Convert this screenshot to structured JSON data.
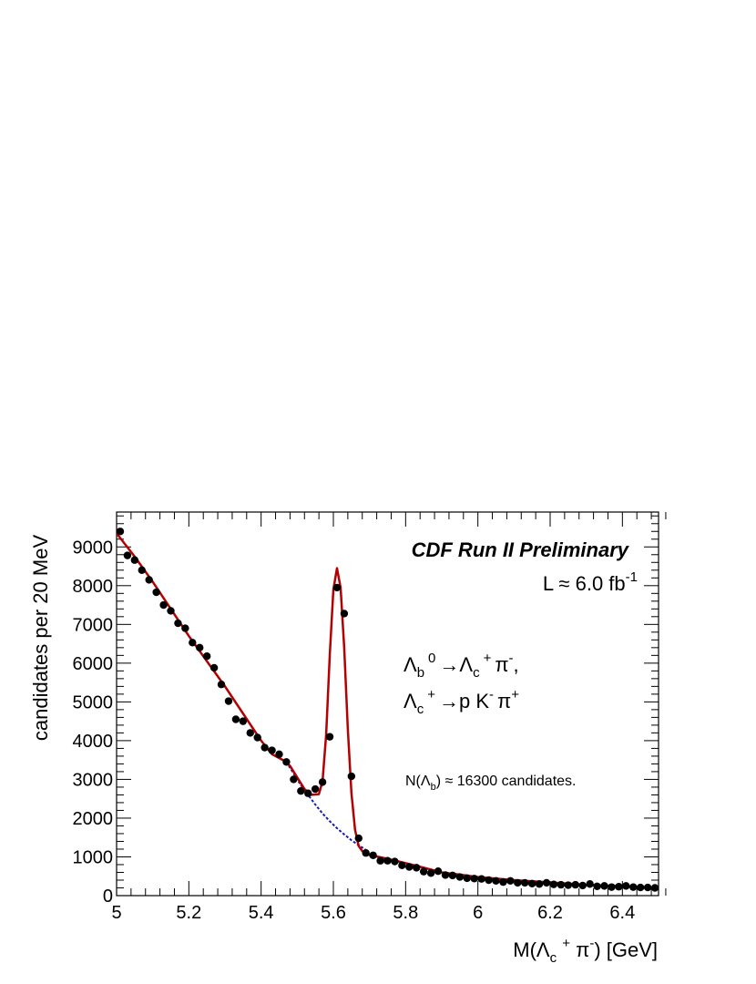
{
  "chart_data": {
    "type": "scatter",
    "xlim": [
      5.0,
      6.5
    ],
    "ylim": [
      0,
      9900
    ],
    "x_ticks": [
      5,
      5.2,
      5.4,
      5.6,
      5.8,
      6,
      6.2,
      6.4
    ],
    "x_tick_labels": [
      "5",
      "5.2",
      "5.4",
      "5.6",
      "5.8",
      "6",
      "6.2",
      "6.4"
    ],
    "y_ticks": [
      0,
      1000,
      2000,
      3000,
      4000,
      5000,
      6000,
      7000,
      8000,
      9000
    ],
    "y_tick_labels": [
      "0",
      "1000",
      "2000",
      "3000",
      "4000",
      "5000",
      "6000",
      "7000",
      "8000",
      "9000"
    ],
    "ylabel": "candidates per 20 MeV",
    "xlabel": {
      "pre": "M(Λ",
      "sub": "c",
      "mid": " ",
      "sup1": "+",
      "mid2": " π",
      "sup2": "-",
      "post": ") [GeV]"
    },
    "grid": false,
    "annotations": {
      "experiment": "CDF Run II Preliminary",
      "lumi": {
        "pre": "L ≈ 6.0 fb",
        "sup": "-1"
      },
      "decay1": {
        "a": "Λ",
        "a_sub": "b",
        "a_sup": "0",
        "arrow": "→",
        "b": "Λ",
        "b_sub": "c",
        "b_sup": "+",
        "c": "π",
        "c_sup": "-",
        "end": ","
      },
      "decay2": {
        "a": "Λ",
        "a_sub": "c",
        "a_sup": "+",
        "arrow": "→",
        "b": "p K",
        "b_sup": "-",
        "c": "π",
        "c_sup": "+"
      },
      "yield": {
        "pre": "N(Λ",
        "sub": "b",
        "post": ") ≈ 16300 candidates."
      }
    },
    "series": [
      {
        "type": "scatter",
        "color": "#000000",
        "x": [
          5.01,
          5.03,
          5.05,
          5.07,
          5.09,
          5.11,
          5.13,
          5.15,
          5.17,
          5.19,
          5.21,
          5.23,
          5.25,
          5.27,
          5.29,
          5.31,
          5.33,
          5.35,
          5.37,
          5.39,
          5.41,
          5.43,
          5.45,
          5.47,
          5.49,
          5.51,
          5.53,
          5.55,
          5.57,
          5.59,
          5.61,
          5.63,
          5.65,
          5.67,
          5.69,
          5.71,
          5.73,
          5.75,
          5.77,
          5.79,
          5.81,
          5.83,
          5.85,
          5.87,
          5.89,
          5.91,
          5.93,
          5.95,
          5.97,
          5.99,
          6.01,
          6.03,
          6.05,
          6.07,
          6.09,
          6.11,
          6.13,
          6.15,
          6.17,
          6.19,
          6.21,
          6.23,
          6.25,
          6.27,
          6.29,
          6.31,
          6.33,
          6.35,
          6.37,
          6.39,
          6.41,
          6.43,
          6.45,
          6.47,
          6.49
        ],
        "y": [
          9400,
          8780,
          8660,
          8400,
          8150,
          7830,
          7500,
          7350,
          7030,
          6900,
          6530,
          6400,
          6180,
          5880,
          5450,
          5020,
          4550,
          4500,
          4200,
          4080,
          3820,
          3750,
          3650,
          3450,
          3000,
          2700,
          2640,
          2750,
          2930,
          4100,
          7950,
          7280,
          3080,
          1480,
          1100,
          1040,
          900,
          900,
          880,
          780,
          740,
          720,
          620,
          580,
          630,
          530,
          520,
          480,
          450,
          440,
          430,
          400,
          380,
          350,
          380,
          330,
          330,
          310,
          300,
          330,
          290,
          280,
          270,
          280,
          260,
          300,
          240,
          250,
          220,
          230,
          250,
          220,
          210,
          210,
          200
        ]
      },
      {
        "name": "background",
        "type": "line",
        "color": "#1a1ab4",
        "x": [
          5.47,
          5.49,
          5.51,
          5.53,
          5.55,
          5.57,
          5.59,
          5.61,
          5.63,
          5.65,
          5.67,
          5.69
        ],
        "y": [
          3450,
          3150,
          2850,
          2600,
          2350,
          2120,
          1920,
          1740,
          1580,
          1430,
          1300,
          1180
        ]
      },
      {
        "name": "fit",
        "type": "line",
        "color": "#b40000",
        "x": [
          5.0,
          5.05,
          5.1,
          5.15,
          5.2,
          5.25,
          5.3,
          5.35,
          5.4,
          5.43,
          5.46,
          5.48,
          5.5,
          5.52,
          5.54,
          5.56,
          5.57,
          5.58,
          5.59,
          5.6,
          5.61,
          5.62,
          5.63,
          5.64,
          5.65,
          5.66,
          5.67,
          5.68,
          5.7,
          5.75,
          5.8,
          5.85,
          5.9,
          6.0,
          6.1,
          6.2,
          6.3,
          6.4,
          6.5
        ],
        "y": [
          9350,
          8750,
          8100,
          7400,
          6700,
          6050,
          5400,
          4700,
          4000,
          3650,
          3500,
          3350,
          3050,
          2750,
          2600,
          2620,
          2950,
          4150,
          6200,
          7900,
          8450,
          7950,
          6400,
          4300,
          2650,
          1700,
          1280,
          1150,
          1050,
          950,
          840,
          720,
          600,
          480,
          400,
          340,
          280,
          240,
          200
        ]
      }
    ]
  }
}
